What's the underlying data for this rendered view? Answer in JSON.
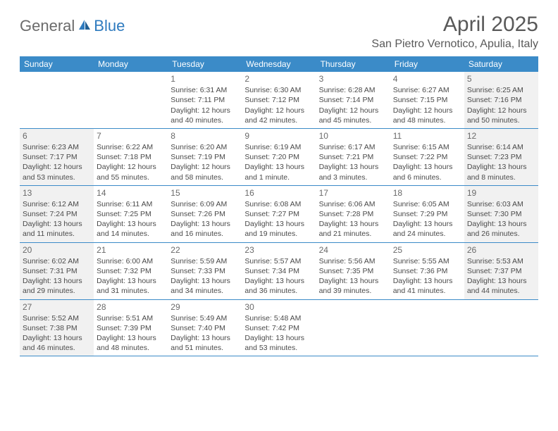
{
  "logo": {
    "part1": "General",
    "part2": "Blue"
  },
  "title": "April 2025",
  "location": "San Pietro Vernotico, Apulia, Italy",
  "colors": {
    "header_bg": "#3b8bc8",
    "header_text": "#ffffff",
    "shade_bg": "#f1f1f1",
    "border": "#3b8bc8",
    "title_color": "#595959",
    "body_text": "#4a4a4a",
    "logo_gray": "#6b6b6b",
    "logo_blue": "#2f7bbf"
  },
  "calendar": {
    "type": "table",
    "columns": [
      "Sunday",
      "Monday",
      "Tuesday",
      "Wednesday",
      "Thursday",
      "Friday",
      "Saturday"
    ],
    "cell_fontsize": 10.5,
    "header_fontsize": 12,
    "weeks": [
      [
        {
          "day": "",
          "sunrise": "",
          "sunset": "",
          "daylight": ""
        },
        {
          "day": "",
          "sunrise": "",
          "sunset": "",
          "daylight": ""
        },
        {
          "day": "1",
          "sunrise": "Sunrise: 6:31 AM",
          "sunset": "Sunset: 7:11 PM",
          "daylight": "Daylight: 12 hours and 40 minutes."
        },
        {
          "day": "2",
          "sunrise": "Sunrise: 6:30 AM",
          "sunset": "Sunset: 7:12 PM",
          "daylight": "Daylight: 12 hours and 42 minutes."
        },
        {
          "day": "3",
          "sunrise": "Sunrise: 6:28 AM",
          "sunset": "Sunset: 7:14 PM",
          "daylight": "Daylight: 12 hours and 45 minutes."
        },
        {
          "day": "4",
          "sunrise": "Sunrise: 6:27 AM",
          "sunset": "Sunset: 7:15 PM",
          "daylight": "Daylight: 12 hours and 48 minutes."
        },
        {
          "day": "5",
          "sunrise": "Sunrise: 6:25 AM",
          "sunset": "Sunset: 7:16 PM",
          "daylight": "Daylight: 12 hours and 50 minutes."
        }
      ],
      [
        {
          "day": "6",
          "sunrise": "Sunrise: 6:23 AM",
          "sunset": "Sunset: 7:17 PM",
          "daylight": "Daylight: 12 hours and 53 minutes."
        },
        {
          "day": "7",
          "sunrise": "Sunrise: 6:22 AM",
          "sunset": "Sunset: 7:18 PM",
          "daylight": "Daylight: 12 hours and 55 minutes."
        },
        {
          "day": "8",
          "sunrise": "Sunrise: 6:20 AM",
          "sunset": "Sunset: 7:19 PM",
          "daylight": "Daylight: 12 hours and 58 minutes."
        },
        {
          "day": "9",
          "sunrise": "Sunrise: 6:19 AM",
          "sunset": "Sunset: 7:20 PM",
          "daylight": "Daylight: 13 hours and 1 minute."
        },
        {
          "day": "10",
          "sunrise": "Sunrise: 6:17 AM",
          "sunset": "Sunset: 7:21 PM",
          "daylight": "Daylight: 13 hours and 3 minutes."
        },
        {
          "day": "11",
          "sunrise": "Sunrise: 6:15 AM",
          "sunset": "Sunset: 7:22 PM",
          "daylight": "Daylight: 13 hours and 6 minutes."
        },
        {
          "day": "12",
          "sunrise": "Sunrise: 6:14 AM",
          "sunset": "Sunset: 7:23 PM",
          "daylight": "Daylight: 13 hours and 8 minutes."
        }
      ],
      [
        {
          "day": "13",
          "sunrise": "Sunrise: 6:12 AM",
          "sunset": "Sunset: 7:24 PM",
          "daylight": "Daylight: 13 hours and 11 minutes."
        },
        {
          "day": "14",
          "sunrise": "Sunrise: 6:11 AM",
          "sunset": "Sunset: 7:25 PM",
          "daylight": "Daylight: 13 hours and 14 minutes."
        },
        {
          "day": "15",
          "sunrise": "Sunrise: 6:09 AM",
          "sunset": "Sunset: 7:26 PM",
          "daylight": "Daylight: 13 hours and 16 minutes."
        },
        {
          "day": "16",
          "sunrise": "Sunrise: 6:08 AM",
          "sunset": "Sunset: 7:27 PM",
          "daylight": "Daylight: 13 hours and 19 minutes."
        },
        {
          "day": "17",
          "sunrise": "Sunrise: 6:06 AM",
          "sunset": "Sunset: 7:28 PM",
          "daylight": "Daylight: 13 hours and 21 minutes."
        },
        {
          "day": "18",
          "sunrise": "Sunrise: 6:05 AM",
          "sunset": "Sunset: 7:29 PM",
          "daylight": "Daylight: 13 hours and 24 minutes."
        },
        {
          "day": "19",
          "sunrise": "Sunrise: 6:03 AM",
          "sunset": "Sunset: 7:30 PM",
          "daylight": "Daylight: 13 hours and 26 minutes."
        }
      ],
      [
        {
          "day": "20",
          "sunrise": "Sunrise: 6:02 AM",
          "sunset": "Sunset: 7:31 PM",
          "daylight": "Daylight: 13 hours and 29 minutes."
        },
        {
          "day": "21",
          "sunrise": "Sunrise: 6:00 AM",
          "sunset": "Sunset: 7:32 PM",
          "daylight": "Daylight: 13 hours and 31 minutes."
        },
        {
          "day": "22",
          "sunrise": "Sunrise: 5:59 AM",
          "sunset": "Sunset: 7:33 PM",
          "daylight": "Daylight: 13 hours and 34 minutes."
        },
        {
          "day": "23",
          "sunrise": "Sunrise: 5:57 AM",
          "sunset": "Sunset: 7:34 PM",
          "daylight": "Daylight: 13 hours and 36 minutes."
        },
        {
          "day": "24",
          "sunrise": "Sunrise: 5:56 AM",
          "sunset": "Sunset: 7:35 PM",
          "daylight": "Daylight: 13 hours and 39 minutes."
        },
        {
          "day": "25",
          "sunrise": "Sunrise: 5:55 AM",
          "sunset": "Sunset: 7:36 PM",
          "daylight": "Daylight: 13 hours and 41 minutes."
        },
        {
          "day": "26",
          "sunrise": "Sunrise: 5:53 AM",
          "sunset": "Sunset: 7:37 PM",
          "daylight": "Daylight: 13 hours and 44 minutes."
        }
      ],
      [
        {
          "day": "27",
          "sunrise": "Sunrise: 5:52 AM",
          "sunset": "Sunset: 7:38 PM",
          "daylight": "Daylight: 13 hours and 46 minutes."
        },
        {
          "day": "28",
          "sunrise": "Sunrise: 5:51 AM",
          "sunset": "Sunset: 7:39 PM",
          "daylight": "Daylight: 13 hours and 48 minutes."
        },
        {
          "day": "29",
          "sunrise": "Sunrise: 5:49 AM",
          "sunset": "Sunset: 7:40 PM",
          "daylight": "Daylight: 13 hours and 51 minutes."
        },
        {
          "day": "30",
          "sunrise": "Sunrise: 5:48 AM",
          "sunset": "Sunset: 7:42 PM",
          "daylight": "Daylight: 13 hours and 53 minutes."
        },
        {
          "day": "",
          "sunrise": "",
          "sunset": "",
          "daylight": ""
        },
        {
          "day": "",
          "sunrise": "",
          "sunset": "",
          "daylight": ""
        },
        {
          "day": "",
          "sunrise": "",
          "sunset": "",
          "daylight": ""
        }
      ]
    ]
  }
}
